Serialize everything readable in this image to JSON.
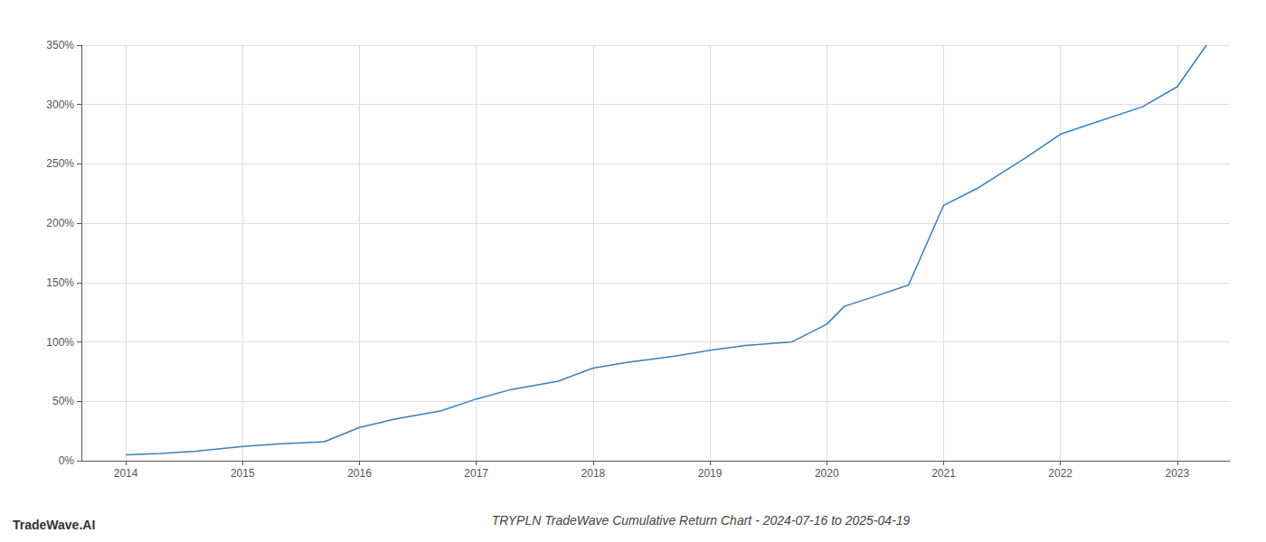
{
  "chart_data": {
    "type": "line",
    "title": "TRYPLN TradeWave Cumulative Return Chart - 2024-07-16 to 2025-04-19",
    "annotations": [
      "TradeWave.AI"
    ],
    "color": "#3a7ebf",
    "x": [
      2014.0,
      2014.3,
      2014.6,
      2015.0,
      2015.3,
      2015.7,
      2016.0,
      2016.3,
      2016.7,
      2017.0,
      2017.3,
      2017.7,
      2018.0,
      2018.3,
      2018.7,
      2019.0,
      2019.3,
      2019.7,
      2020.0,
      2020.15,
      2020.4,
      2020.7,
      2021.0,
      2021.3,
      2021.7,
      2022.0,
      2022.3,
      2022.7,
      2023.0,
      2023.25
    ],
    "values": [
      5,
      6,
      8,
      12,
      14,
      16,
      28,
      35,
      42,
      52,
      60,
      67,
      78,
      83,
      88,
      93,
      97,
      100,
      115,
      130,
      138,
      148,
      215,
      230,
      255,
      275,
      285,
      298,
      315,
      350
    ],
    "xlim": [
      2013.62,
      2023.45
    ],
    "ylim": [
      0,
      350
    ],
    "xticks": [
      2014,
      2015,
      2016,
      2017,
      2018,
      2019,
      2020,
      2021,
      2022,
      2023
    ],
    "yticks": [
      {
        "value": 0,
        "label": "0%"
      },
      {
        "value": 50,
        "label": "50%"
      },
      {
        "value": 100,
        "label": "100%"
      },
      {
        "value": 150,
        "label": "150%"
      },
      {
        "value": 200,
        "label": "200%"
      },
      {
        "value": 250,
        "label": "250%"
      },
      {
        "value": 300,
        "label": "300%"
      },
      {
        "value": 350,
        "label": "350%"
      }
    ],
    "grid": true
  }
}
